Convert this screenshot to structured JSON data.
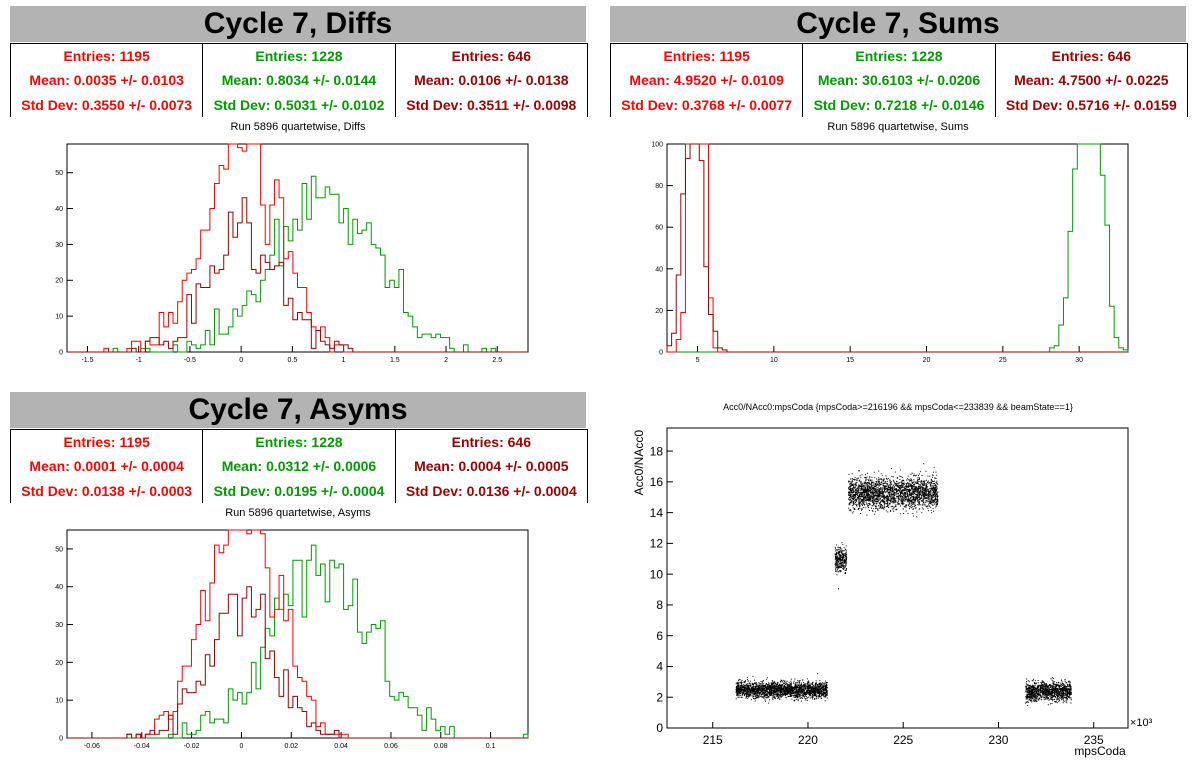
{
  "colors": {
    "red": "#ff0000",
    "green": "#009900",
    "darkred": "#990000",
    "black": "#000000"
  },
  "panels": {
    "diffs": {
      "title": "Cycle 7, Diffs",
      "subtitle": "Run 5896 quartetwise, Diffs",
      "stats": [
        {
          "entries": "Entries: 1195",
          "mean": "Mean: 0.0035 +/- 0.0103",
          "std": "Std Dev: 0.3550 +/- 0.0073"
        },
        {
          "entries": "Entries: 1228",
          "mean": "Mean: 0.8034 +/- 0.0144",
          "std": "Std Dev: 0.5031 +/- 0.0102"
        },
        {
          "entries": "Entries: 646",
          "mean": "Mean: 0.0106 +/- 0.0138",
          "std": "Std Dev: 0.3511 +/- 0.0098"
        }
      ]
    },
    "sums": {
      "title": "Cycle 7, Sums",
      "subtitle": "Run 5896 quartetwise, Sums",
      "stats": [
        {
          "entries": "Entries: 1195",
          "mean": "Mean: 4.9520 +/- 0.0109",
          "std": "Std Dev: 0.3768 +/- 0.0077"
        },
        {
          "entries": "Entries: 1228",
          "mean": "Mean: 30.6103 +/- 0.0206",
          "std": "Std Dev: 0.7218 +/- 0.0146"
        },
        {
          "entries": "Entries: 646",
          "mean": "Mean: 4.7500 +/- 0.0225",
          "std": "Std Dev: 0.5716 +/- 0.0159"
        }
      ]
    },
    "asyms": {
      "title": "Cycle 7, Asyms",
      "subtitle": "Run 5896 quartetwise, Asyms",
      "stats": [
        {
          "entries": "Entries: 1195",
          "mean": "Mean: 0.0001 +/- 0.0004",
          "std": "Std Dev: 0.0138 +/- 0.0003"
        },
        {
          "entries": "Entries: 1228",
          "mean": "Mean: 0.0312 +/- 0.0006",
          "std": "Std Dev: 0.0195 +/- 0.0004"
        },
        {
          "entries": "Entries: 646",
          "mean": "Mean: 0.0004 +/- 0.0005",
          "std": "Std Dev: 0.0136 +/- 0.0004"
        }
      ]
    },
    "scatter": {
      "title": "Acc0/NAcc0:mpsCoda {mpsCoda>=216196 && mpsCoda<=233839 && beamState==1}"
    }
  },
  "chart_data": [
    {
      "type": "histogram",
      "panel": "diffs",
      "xlim": [
        -1.7,
        2.8
      ],
      "ylim": [
        0,
        58
      ],
      "xticks": [
        "-1.5",
        "-1",
        "-0.5",
        "0",
        "0.5",
        "1",
        "1.5",
        "2",
        "2.5"
      ],
      "yticks": [
        "0",
        "10",
        "20",
        "30",
        "40",
        "50"
      ],
      "series": [
        {
          "color": "green",
          "entries": 1228,
          "mean": 0.8034,
          "std": 0.5031
        },
        {
          "color": "red",
          "entries": 1195,
          "mean": 0.0035,
          "std": 0.355
        },
        {
          "color": "darkred",
          "entries": 646,
          "mean": 0.0106,
          "std": 0.3511
        }
      ]
    },
    {
      "type": "histogram",
      "panel": "sums",
      "xlim": [
        3,
        33.2
      ],
      "ylim": [
        0,
        100
      ],
      "xticks": [
        "5",
        "10",
        "15",
        "20",
        "25",
        "30"
      ],
      "yticks": [
        "0",
        "20",
        "40",
        "60",
        "80",
        "100"
      ],
      "series": [
        {
          "color": "green",
          "entries": 1228,
          "mean": 30.6103,
          "std": 0.7218
        },
        {
          "color": "red",
          "entries": 1195,
          "mean": 4.952,
          "std": 0.3768
        },
        {
          "color": "darkred",
          "entries": 646,
          "mean": 4.75,
          "std": 0.5716
        }
      ]
    },
    {
      "type": "histogram",
      "panel": "asyms",
      "xlim": [
        -0.07,
        0.115
      ],
      "ylim": [
        0,
        55
      ],
      "xticks": [
        "-0.06",
        "-0.04",
        "-0.02",
        "0",
        "0.02",
        "0.04",
        "0.06",
        "0.08",
        "0.1"
      ],
      "yticks": [
        "0",
        "10",
        "20",
        "30",
        "40",
        "50"
      ],
      "series": [
        {
          "color": "green",
          "entries": 1228,
          "mean": 0.0312,
          "std": 0.0195
        },
        {
          "color": "red",
          "entries": 1195,
          "mean": 0.0001,
          "std": 0.0138
        },
        {
          "color": "darkred",
          "entries": 646,
          "mean": 0.0004,
          "std": 0.0136
        }
      ]
    },
    {
      "type": "scatter",
      "panel": "scatter",
      "xlabel": "mpsCoda",
      "ylabel": "Acc0/NAcc0",
      "xmultiplier": "×10³",
      "xlim": [
        212.6,
        236.8
      ],
      "ylim": [
        0,
        19.5
      ],
      "xticks": [
        "215",
        "220",
        "225",
        "230",
        "235"
      ],
      "yticks": [
        "0",
        "2",
        "4",
        "6",
        "8",
        "10",
        "12",
        "14",
        "16",
        "18"
      ],
      "clusters": [
        {
          "x": [
            216.2,
            221.0
          ],
          "y": 2.5,
          "spread": 0.25
        },
        {
          "x": [
            221.4,
            222.0
          ],
          "y": 11.0,
          "spread": 0.4
        },
        {
          "x": [
            222.1,
            226.8
          ],
          "y": 15.3,
          "spread": 0.5
        },
        {
          "x": [
            231.4,
            233.8
          ],
          "y": 2.4,
          "spread": 0.3
        }
      ]
    }
  ]
}
